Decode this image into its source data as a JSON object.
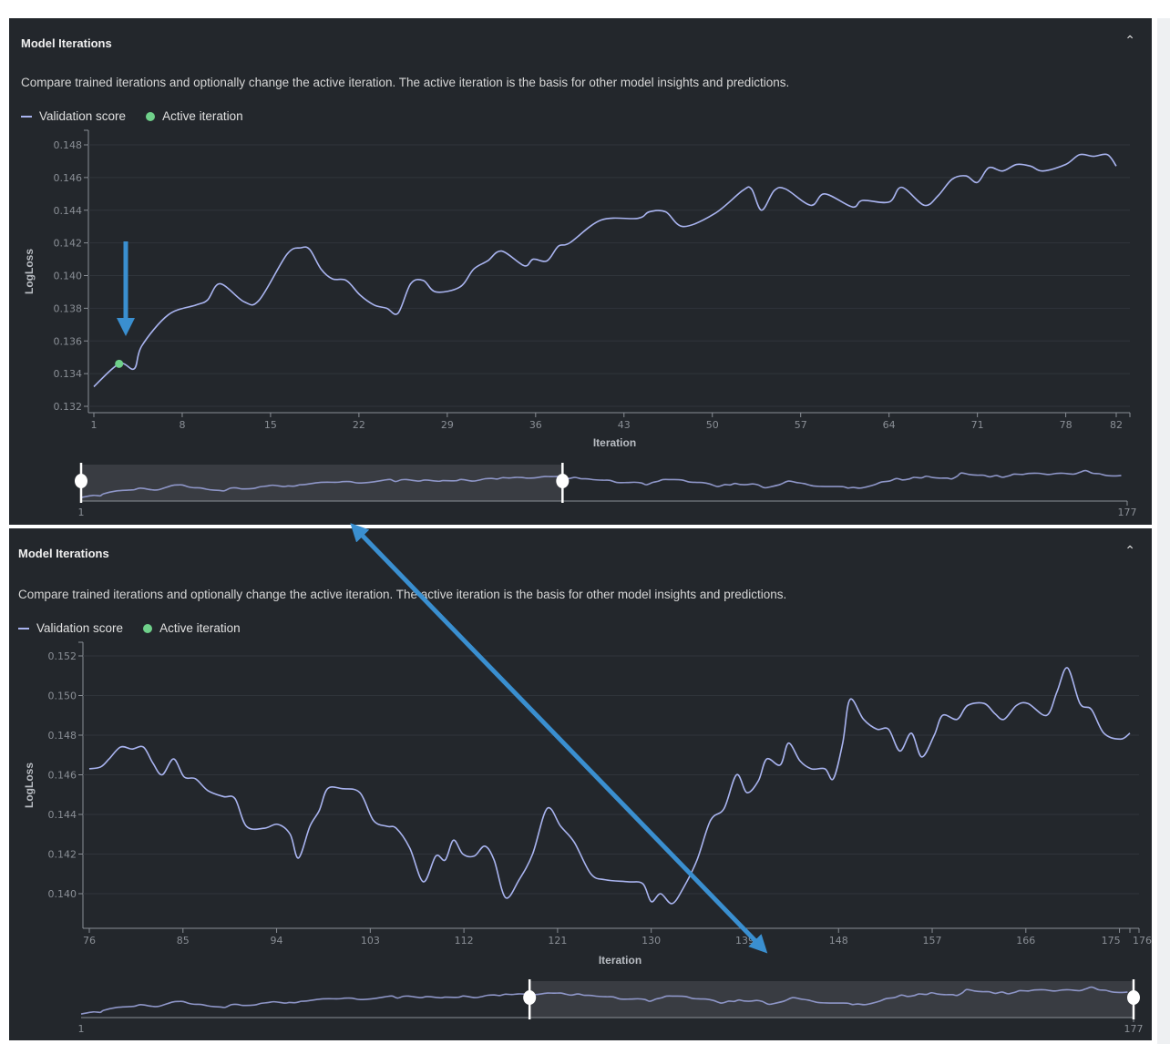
{
  "colors": {
    "panel_bg": "#23272c",
    "line": "#a9b4f0",
    "active": "#6fd08a",
    "annotation": "#3a8fd0",
    "grid": "#30353b"
  },
  "panels": [
    {
      "title": "Model Iterations",
      "collapse_icon": "chevron-up-icon",
      "description": "Compare trained iterations and optionally change the active iteration. The active iteration is the basis for other model insights and predictions.",
      "legend": {
        "series": "Validation score",
        "active": "Active iteration"
      },
      "navigator": {
        "min_label": "1",
        "max_label": "177"
      }
    },
    {
      "title": "Model Iterations",
      "collapse_icon": "chevron-up-icon",
      "description": "Compare trained iterations and optionally change the active iteration. The active iteration is the basis for other model insights and predictions.",
      "legend": {
        "series": "Validation score",
        "active": "Active iteration"
      },
      "navigator": {
        "min_label": "1",
        "max_label": "177"
      }
    }
  ],
  "chart_data": [
    {
      "type": "line",
      "title": "",
      "xlabel": "Iteration",
      "ylabel": "LogLoss",
      "xlim": [
        1,
        82
      ],
      "ylim": [
        0.132,
        0.148
      ],
      "xticks": [
        "1",
        "8",
        "15",
        "22",
        "29",
        "36",
        "43",
        "50",
        "57",
        "64",
        "71",
        "78",
        "82"
      ],
      "yticks": [
        "0.132",
        "0.134",
        "0.136",
        "0.138",
        "0.140",
        "0.142",
        "0.144",
        "0.146",
        "0.148"
      ],
      "grid": true,
      "active_iteration": {
        "x": 3,
        "y": 0.1346
      },
      "navigator_window": [
        1,
        82
      ],
      "navigator_range": [
        1,
        177
      ],
      "series": [
        {
          "name": "Validation score",
          "points": [
            [
              1,
              0.1332
            ],
            [
              3,
              0.1346
            ],
            [
              4.2,
              0.1343
            ],
            [
              4.8,
              0.1357
            ],
            [
              6.9,
              0.1376
            ],
            [
              9.1,
              0.1382
            ],
            [
              10,
              0.1385
            ],
            [
              11,
              0.1395
            ],
            [
              12.9,
              0.1384
            ],
            [
              14.1,
              0.1385
            ],
            [
              16.3,
              0.1413
            ],
            [
              17.4,
              0.1417
            ],
            [
              18.1,
              0.1416
            ],
            [
              19,
              0.1404
            ],
            [
              19.9,
              0.1398
            ],
            [
              21,
              0.1397
            ],
            [
              22.1,
              0.1388
            ],
            [
              23.2,
              0.1382
            ],
            [
              24.2,
              0.138
            ],
            [
              25.1,
              0.1377
            ],
            [
              26.1,
              0.1395
            ],
            [
              27.1,
              0.1397
            ],
            [
              28.1,
              0.139
            ],
            [
              30,
              0.1393
            ],
            [
              31.1,
              0.1404
            ],
            [
              32.2,
              0.1409
            ],
            [
              33.3,
              0.1415
            ],
            [
              35.1,
              0.1406
            ],
            [
              35.8,
              0.141
            ],
            [
              36.9,
              0.1409
            ],
            [
              37.8,
              0.1418
            ],
            [
              38.7,
              0.142
            ],
            [
              41.2,
              0.1434
            ],
            [
              44.1,
              0.1435
            ],
            [
              45,
              0.1439
            ],
            [
              46.3,
              0.1439
            ],
            [
              47.7,
              0.143
            ],
            [
              50.2,
              0.1438
            ],
            [
              52.4,
              0.1452
            ],
            [
              53.1,
              0.1453
            ],
            [
              53.9,
              0.144
            ],
            [
              54.9,
              0.1452
            ],
            [
              55.8,
              0.1453
            ],
            [
              57.8,
              0.1443
            ],
            [
              58.9,
              0.145
            ],
            [
              61.1,
              0.1442
            ],
            [
              61.9,
              0.1446
            ],
            [
              64,
              0.1445
            ],
            [
              65,
              0.1454
            ],
            [
              66.8,
              0.1443
            ],
            [
              67.9,
              0.1449
            ],
            [
              69,
              0.1459
            ],
            [
              70.1,
              0.1461
            ],
            [
              71,
              0.1457
            ],
            [
              71.9,
              0.1466
            ],
            [
              73,
              0.1464
            ],
            [
              74.1,
              0.1468
            ],
            [
              75.2,
              0.1467
            ],
            [
              76.2,
              0.1464
            ],
            [
              78,
              0.1468
            ],
            [
              79.1,
              0.1474
            ],
            [
              80.2,
              0.1473
            ],
            [
              81.3,
              0.1474
            ],
            [
              82,
              0.1467
            ]
          ]
        }
      ]
    },
    {
      "type": "line",
      "title": "",
      "xlabel": "Iteration",
      "ylabel": "LogLoss",
      "xlim": [
        76,
        176
      ],
      "ylim": [
        0.1383,
        0.1527
      ],
      "xticks": [
        "76",
        "85",
        "94",
        "103",
        "112",
        "121",
        "130",
        "139",
        "148",
        "157",
        "166",
        "175",
        "176"
      ],
      "yticks": [
        "0.140",
        "0.142",
        "0.144",
        "0.146",
        "0.148",
        "0.150",
        "0.152"
      ],
      "grid": true,
      "navigator_window": [
        76,
        177
      ],
      "navigator_range": [
        1,
        177
      ],
      "series": [
        {
          "name": "Validation score",
          "points": [
            [
              76,
              0.1463
            ],
            [
              77.1,
              0.1464
            ],
            [
              77.9,
              0.1468
            ],
            [
              79,
              0.1474
            ],
            [
              80.1,
              0.1473
            ],
            [
              81.2,
              0.1474
            ],
            [
              82.1,
              0.1466
            ],
            [
              83,
              0.146
            ],
            [
              84.1,
              0.1468
            ],
            [
              85.1,
              0.1459
            ],
            [
              86.2,
              0.1458
            ],
            [
              87.4,
              0.1452
            ],
            [
              88.9,
              0.1449
            ],
            [
              90,
              0.1448
            ],
            [
              91.1,
              0.1434
            ],
            [
              92.8,
              0.1433
            ],
            [
              94.1,
              0.1435
            ],
            [
              95.3,
              0.143
            ],
            [
              96.1,
              0.1418
            ],
            [
              97.2,
              0.1434
            ],
            [
              98.1,
              0.1442
            ],
            [
              98.9,
              0.1453
            ],
            [
              100.3,
              0.1453
            ],
            [
              102,
              0.1451
            ],
            [
              103.3,
              0.1437
            ],
            [
              104.6,
              0.1434
            ],
            [
              105.5,
              0.1433
            ],
            [
              106.8,
              0.1423
            ],
            [
              108.1,
              0.1406
            ],
            [
              109.3,
              0.1419
            ],
            [
              110.2,
              0.1417
            ],
            [
              111,
              0.1427
            ],
            [
              111.9,
              0.142
            ],
            [
              113,
              0.1419
            ],
            [
              114,
              0.1424
            ],
            [
              114.9,
              0.1417
            ],
            [
              116,
              0.1398
            ],
            [
              117.3,
              0.1407
            ],
            [
              118.6,
              0.142
            ],
            [
              120,
              0.1443
            ],
            [
              121.3,
              0.1434
            ],
            [
              122.6,
              0.1426
            ],
            [
              124.2,
              0.141
            ],
            [
              125.6,
              0.1407
            ],
            [
              127.8,
              0.1406
            ],
            [
              129.2,
              0.1405
            ],
            [
              130,
              0.1396
            ],
            [
              130.9,
              0.14
            ],
            [
              132,
              0.1395
            ],
            [
              133.1,
              0.1403
            ],
            [
              134.4,
              0.1417
            ],
            [
              135.7,
              0.1437
            ],
            [
              137,
              0.1443
            ],
            [
              138.2,
              0.146
            ],
            [
              139.2,
              0.1451
            ],
            [
              140.3,
              0.1457
            ],
            [
              141.1,
              0.1468
            ],
            [
              142.4,
              0.1465
            ],
            [
              143.2,
              0.1476
            ],
            [
              144.3,
              0.1467
            ],
            [
              145.4,
              0.1463
            ],
            [
              146.7,
              0.1463
            ],
            [
              147.5,
              0.1458
            ],
            [
              148.4,
              0.1476
            ],
            [
              149.1,
              0.1498
            ],
            [
              150.4,
              0.1488
            ],
            [
              151.7,
              0.1483
            ],
            [
              152.8,
              0.1483
            ],
            [
              153.9,
              0.1472
            ],
            [
              155,
              0.1481
            ],
            [
              156,
              0.1469
            ],
            [
              157.2,
              0.148
            ],
            [
              158,
              0.149
            ],
            [
              159.4,
              0.1488
            ],
            [
              160.4,
              0.1495
            ],
            [
              162,
              0.1496
            ],
            [
              163,
              0.1491
            ],
            [
              163.9,
              0.1488
            ],
            [
              165.1,
              0.1495
            ],
            [
              166.2,
              0.1496
            ],
            [
              168,
              0.149
            ],
            [
              169,
              0.1502
            ],
            [
              170,
              0.1514
            ],
            [
              171.2,
              0.1496
            ],
            [
              172.3,
              0.1493
            ],
            [
              173.5,
              0.1481
            ],
            [
              175.1,
              0.1478
            ],
            [
              176,
              0.1481
            ]
          ]
        }
      ]
    }
  ]
}
